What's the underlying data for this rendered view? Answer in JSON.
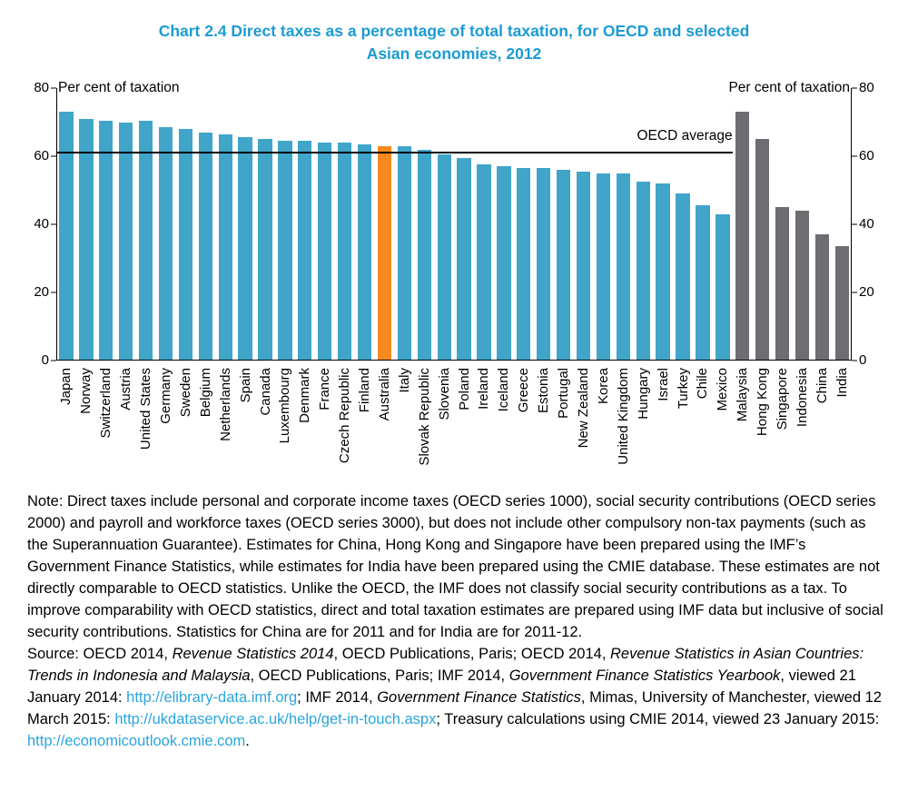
{
  "title": {
    "line1": "Chart 2.4 Direct taxes as a percentage of total taxation, for OECD and selected",
    "line2": "Asian economies, 2012"
  },
  "chart_data": {
    "type": "bar",
    "title": "Chart 2.4 Direct taxes as a percentage of total taxation, for OECD and selected Asian economies, 2012",
    "ylabel_left": "Per cent of taxation",
    "ylabel_right": "Per cent of taxation",
    "ylim": [
      0,
      80
    ],
    "yticks": [
      0,
      20,
      40,
      60,
      80
    ],
    "grid": false,
    "average_line": {
      "label": "OECD average",
      "value": 61,
      "spans_groups": [
        "oecd",
        "australia"
      ]
    },
    "colors": {
      "oecd": "#41A5C9",
      "australia": "#F6891F",
      "asia": "#6D6E71"
    },
    "series": [
      {
        "country": "Japan",
        "value": 73,
        "group": "oecd"
      },
      {
        "country": "Norway",
        "value": 71,
        "group": "oecd"
      },
      {
        "country": "Switzerland",
        "value": 70.5,
        "group": "oecd"
      },
      {
        "country": "Austria",
        "value": 70,
        "group": "oecd"
      },
      {
        "country": "United States",
        "value": 70.5,
        "group": "oecd"
      },
      {
        "country": "Germany",
        "value": 68.5,
        "group": "oecd"
      },
      {
        "country": "Sweden",
        "value": 68,
        "group": "oecd"
      },
      {
        "country": "Belgium",
        "value": 67,
        "group": "oecd"
      },
      {
        "country": "Netherlands",
        "value": 66.5,
        "group": "oecd"
      },
      {
        "country": "Spain",
        "value": 65.5,
        "group": "oecd"
      },
      {
        "country": "Canada",
        "value": 65,
        "group": "oecd"
      },
      {
        "country": "Luxembourg",
        "value": 64.5,
        "group": "oecd"
      },
      {
        "country": "Denmark",
        "value": 64.5,
        "group": "oecd"
      },
      {
        "country": "France",
        "value": 64,
        "group": "oecd"
      },
      {
        "country": "Czech Republic",
        "value": 64,
        "group": "oecd"
      },
      {
        "country": "Finland",
        "value": 63.5,
        "group": "oecd"
      },
      {
        "country": "Australia",
        "value": 63,
        "group": "australia"
      },
      {
        "country": "Italy",
        "value": 63,
        "group": "oecd"
      },
      {
        "country": "Slovak Republic",
        "value": 62,
        "group": "oecd"
      },
      {
        "country": "Slovenia",
        "value": 60.5,
        "group": "oecd"
      },
      {
        "country": "Poland",
        "value": 59.5,
        "group": "oecd"
      },
      {
        "country": "Ireland",
        "value": 57.5,
        "group": "oecd"
      },
      {
        "country": "Iceland",
        "value": 57,
        "group": "oecd"
      },
      {
        "country": "Greece",
        "value": 56.5,
        "group": "oecd"
      },
      {
        "country": "Estonia",
        "value": 56.5,
        "group": "oecd"
      },
      {
        "country": "Portugal",
        "value": 56,
        "group": "oecd"
      },
      {
        "country": "New Zealand",
        "value": 55.5,
        "group": "oecd"
      },
      {
        "country": "Korea",
        "value": 55,
        "group": "oecd"
      },
      {
        "country": "United Kingdom",
        "value": 55,
        "group": "oecd"
      },
      {
        "country": "Hungary",
        "value": 52.5,
        "group": "oecd"
      },
      {
        "country": "Israel",
        "value": 52,
        "group": "oecd"
      },
      {
        "country": "Turkey",
        "value": 49,
        "group": "oecd"
      },
      {
        "country": "Chile",
        "value": 45.5,
        "group": "oecd"
      },
      {
        "country": "Mexico",
        "value": 43,
        "group": "oecd"
      },
      {
        "country": "Malaysia",
        "value": 73,
        "group": "asia"
      },
      {
        "country": "Hong Kong",
        "value": 65,
        "group": "asia"
      },
      {
        "country": "Singapore",
        "value": 45,
        "group": "asia"
      },
      {
        "country": "Indonesia",
        "value": 44,
        "group": "asia"
      },
      {
        "country": "China",
        "value": 37,
        "group": "asia"
      },
      {
        "country": "India",
        "value": 33.5,
        "group": "asia"
      }
    ]
  },
  "note": {
    "text": "Note:  Direct taxes include personal and corporate income taxes (OECD series 1000), social security contributions (OECD series 2000) and payroll and workforce taxes (OECD series 3000), but does not include other compulsory non-tax payments (such as the Superannuation Guarantee). Estimates for China, Hong Kong and Singapore have been prepared using the IMF’s Government Finance Statistics, while estimates for India have been prepared using the CMIE database. These estimates are not directly comparable to OECD statistics. Unlike the OECD, the IMF does not classify social security contributions as a tax. To improve comparability with OECD statistics, direct and total taxation estimates are prepared using IMF data but inclusive of social security contributions. Statistics for China are for 2011 and for India are for 2011-12."
  },
  "source": {
    "segments": [
      {
        "text": "Source: OECD 2014, "
      },
      {
        "text": "Revenue Statistics 2014",
        "italic": true
      },
      {
        "text": ", OECD Publications, Paris; OECD 2014, "
      },
      {
        "text": "Revenue Statistics in Asian Countries: Trends in Indonesia and Malaysia",
        "italic": true
      },
      {
        "text": ", OECD Publications, Paris; IMF 2014, "
      },
      {
        "text": "Government Finance Statistics Yearbook",
        "italic": true
      },
      {
        "text": ", viewed 21 January 2014: "
      },
      {
        "text": "http://elibrary-data.imf.org",
        "link": true
      },
      {
        "text": "; IMF 2014, "
      },
      {
        "text": "Government Finance Statistics",
        "italic": true
      },
      {
        "text": ", Mimas, University of Manchester, viewed 12 March 2015: "
      },
      {
        "text": "http://ukdataservice.ac.uk/help/get-in-touch.aspx",
        "link": true
      },
      {
        "text": "; Treasury calculations using CMIE 2014, viewed 23 January 2015: "
      },
      {
        "text": "http://economicoutlook.cmie.com",
        "link": true
      },
      {
        "text": "."
      }
    ]
  }
}
